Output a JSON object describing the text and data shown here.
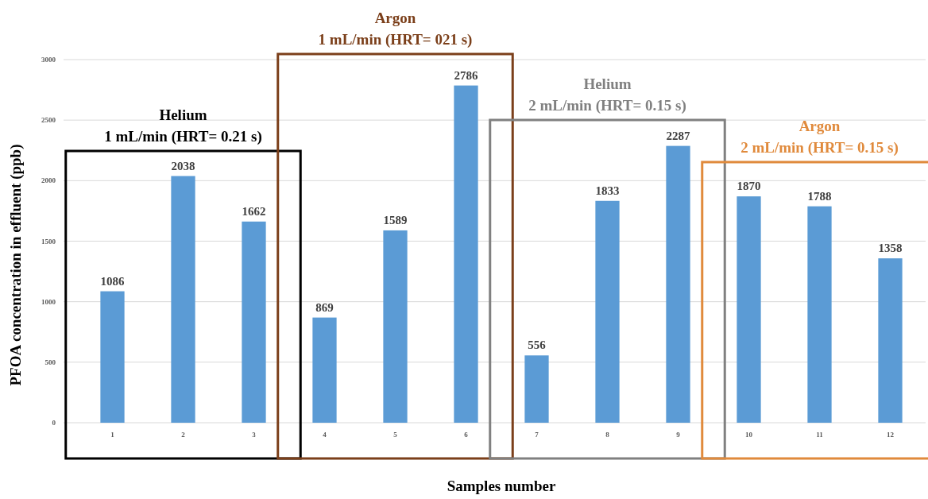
{
  "chart_data": {
    "type": "bar",
    "xlabel": "Samples number",
    "ylabel": "PFOA concentration in effluent (ppb)",
    "categories": [
      "1",
      "2",
      "3",
      "4",
      "5",
      "6",
      "7",
      "8",
      "9",
      "10",
      "11",
      "12"
    ],
    "values": [
      1086,
      2038,
      1662,
      869,
      1589,
      2786,
      556,
      1833,
      2287,
      1870,
      1788,
      1358
    ],
    "color": "#5b9bd5",
    "ylim": [
      0,
      3000
    ],
    "yticks": [
      0,
      500,
      1000,
      1500,
      2000,
      2500,
      3000
    ],
    "grid": "y",
    "data_labels": true,
    "annotations": [
      "Helium\n1 mL/min (HRT= 0.21 s)",
      "Argon\n1 mL/min (HRT= 021 s)",
      "Helium\n2 mL/min (HRT= 0.15 s)",
      "Argon\n2 mL/min (HRT= 0.15 s)"
    ]
  }
}
